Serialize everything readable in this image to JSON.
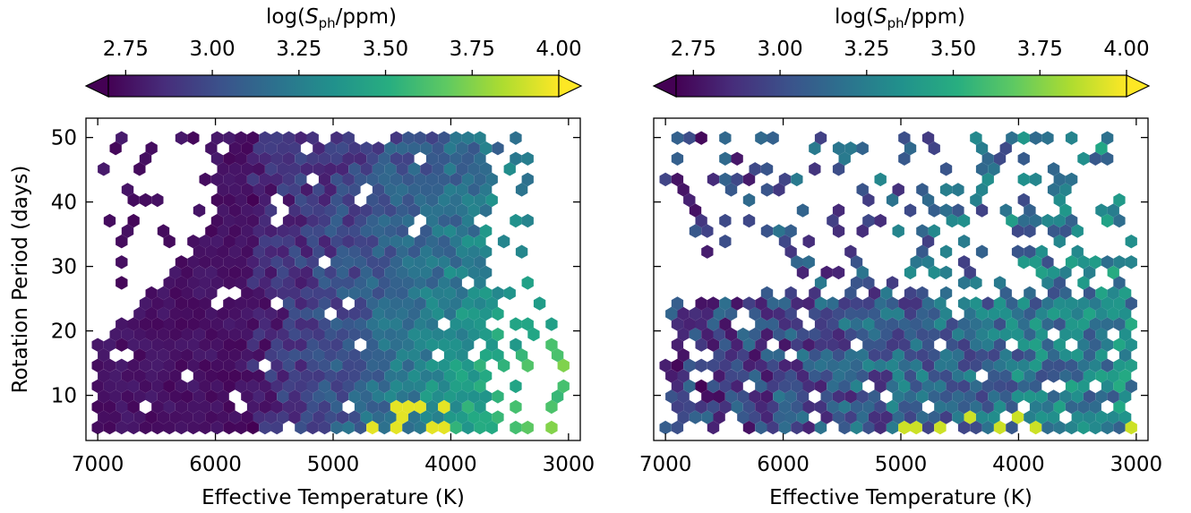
{
  "chart_data": [
    {
      "type": "heatmap",
      "subtype": "hexbin",
      "panel": "left",
      "xlabel": "Effective Temperature (K)",
      "ylabel": "Rotation Period (days)",
      "xlim": [
        7100,
        2900
      ],
      "ylim": [
        3,
        53
      ],
      "x_inverted": true,
      "xticks": [
        "7000",
        "6000",
        "5000",
        "4000",
        "3000"
      ],
      "yticks": [
        "10",
        "20",
        "30",
        "40",
        "50"
      ],
      "grid": false,
      "colorbar": {
        "label": "log(Sph/ppm)",
        "label_main": "log(",
        "label_italic": "S",
        "label_sub": "ph",
        "label_tail": "/ppm)",
        "location": "top",
        "ticks": [
          "2.75",
          "3.00",
          "3.25",
          "3.50",
          "3.75",
          "4.00"
        ],
        "range": [
          2.7,
          4.0
        ],
        "extend": "both",
        "colormap": "viridis"
      },
      "notes": "Dense region filling Teff 7000–5600 K for all periods, strongly purple (~2.7–2.9); gradient to teal/green toward cooler Teff at short periods; yellow bins (~4.0) near 4600–4000 K, 5–8 d."
    },
    {
      "type": "heatmap",
      "subtype": "hexbin",
      "panel": "right",
      "xlabel": "Effective Temperature (K)",
      "ylabel": "",
      "xlim": [
        7100,
        2900
      ],
      "ylim": [
        3,
        53
      ],
      "x_inverted": true,
      "xticks": [
        "7000",
        "6000",
        "5000",
        "4000",
        "3000"
      ],
      "grid": false,
      "colorbar": {
        "label": "log(Sph/ppm)",
        "label_main": "log(",
        "label_italic": "S",
        "label_sub": "ph",
        "label_tail": "/ppm)",
        "location": "top",
        "ticks": [
          "2.75",
          "3.00",
          "3.25",
          "3.50",
          "3.75",
          "4.00"
        ],
        "range": [
          2.7,
          4.0
        ],
        "extend": "both",
        "colormap": "viridis"
      },
      "notes": "Sparser; dense band 5–25 d across 6800–3100 K with mostly blue-teal values (~3.0–3.4); scattered bins 26–50 d; gap between ~26–30 d at hot Teff."
    }
  ]
}
